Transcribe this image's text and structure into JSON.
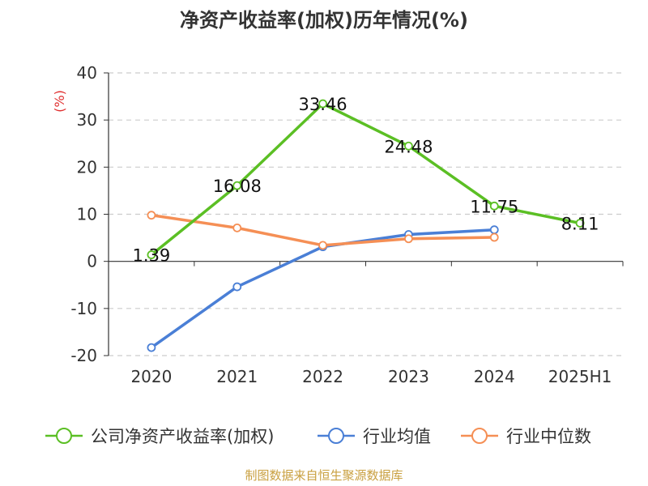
{
  "chart_data": {
    "type": "line",
    "title": "净资产收益率(加权)历年情况(%)",
    "ylabel": "(%)",
    "xlabel": "",
    "categories": [
      "2020",
      "2021",
      "2022",
      "2023",
      "2024",
      "2025H1"
    ],
    "yticks": [
      "40",
      "30",
      "20",
      "10",
      "0",
      "-10",
      "-20"
    ],
    "ylim": [
      -20,
      40
    ],
    "grid": true,
    "legend_position": "bottom",
    "series": [
      {
        "name": "公司净资产收益率(加权)",
        "color": "#5bbf24",
        "values": [
          1.39,
          16.08,
          33.46,
          24.48,
          11.75,
          8.11
        ],
        "labels": [
          "1.39",
          "16.08",
          "33.46",
          "24.48",
          "11.75",
          "8.11"
        ]
      },
      {
        "name": "行业均值",
        "color": "#4a7fd6",
        "values": [
          -18.3,
          -5.4,
          3.1,
          5.7,
          6.7,
          null
        ]
      },
      {
        "name": "行业中位数",
        "color": "#f58f55",
        "values": [
          9.8,
          7.1,
          3.4,
          4.8,
          5.1,
          null
        ]
      }
    ]
  },
  "footer": {
    "source": "制图数据来自恒生聚源数据库"
  }
}
